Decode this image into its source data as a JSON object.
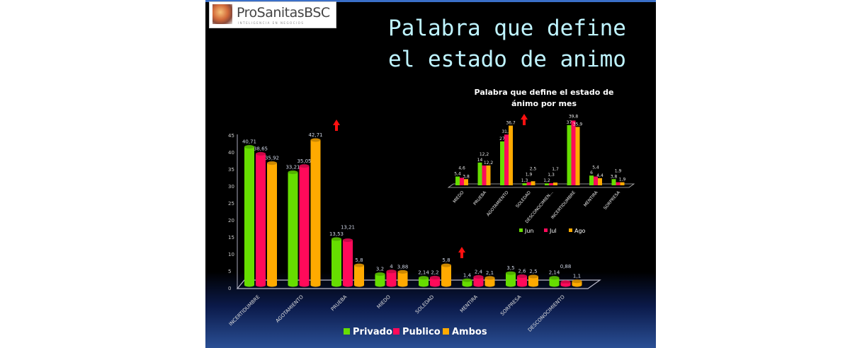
{
  "logo": {
    "name": "ProSanitasBSC",
    "tagline": "INTELIGENCIA EN NEGOCIOS"
  },
  "title": "Palabra que define el estado de animo",
  "colors": {
    "green": "#66dd00",
    "pink": "#ff0a5a",
    "orange": "#ffaa00",
    "arrow": "#ff1010"
  },
  "chart_data": [
    {
      "type": "bar",
      "title": "",
      "categories": [
        "INCERTIDUMBRE",
        "AGOTAMIENTO",
        "PRUEBA",
        "MIEDO",
        "SOLEDAD",
        "MENTIRA",
        "SORPRESA",
        "DESCONOCIMIENTO"
      ],
      "series": [
        {
          "name": "Privado",
          "values": [
            40.71,
            33.21,
            13.53,
            3.2,
            2.14,
            1.4,
            3.5,
            2.14
          ],
          "labels": [
            "40,71",
            "33,21",
            "13,53",
            "3,2",
            "2,14",
            "1,4",
            "3,5",
            "2,14"
          ]
        },
        {
          "name": "Publico",
          "values": [
            38.65,
            35.05,
            13.21,
            4,
            2.2,
            2.4,
            2.6,
            0.88
          ],
          "labels": [
            "38,65",
            "35,05",
            "13,21",
            "4",
            "2,2",
            "2,4",
            "2,6",
            "0,88"
          ]
        },
        {
          "name": "Ambos",
          "values": [
            35.92,
            42.71,
            5.8,
            3.88,
            5.8,
            2.1,
            2.5,
            1.1
          ],
          "labels": [
            "35,92",
            "42,71",
            "5,8",
            "3,88",
            "5,8",
            "2,1",
            "2,5",
            "1,1"
          ]
        }
      ],
      "ylim": [
        0,
        45
      ],
      "yticks": [
        "0",
        "5",
        "10",
        "15",
        "20",
        "25",
        "30",
        "35",
        "40",
        "45"
      ],
      "legend": "bottom"
    },
    {
      "type": "bar",
      "title": "Palabra que define el estado de ánimo por mes",
      "categories": [
        "MIEDO",
        "PRUEBA",
        "AGOTAMIENTO",
        "SOLEDAD",
        "DESCONOCIMIEN...",
        "INCERTIDUMBRE",
        "MENTIRA",
        "SORPRESA"
      ],
      "series": [
        {
          "name": "Jun",
          "values": [
            5.4,
            14,
            27,
            1.3,
            1.2,
            37,
            6,
            3.8
          ],
          "labels": [
            "5,4",
            "14",
            "27",
            "1,3",
            "1,2",
            "37",
            "6",
            "3,8"
          ]
        },
        {
          "name": "Jul",
          "values": [
            4.6,
            12.2,
            31.2,
            1.9,
            1.3,
            39.8,
            5.4,
            1.9
          ],
          "labels": [
            "4,6",
            "12,2",
            "31,2",
            "1,9",
            "1,3",
            "39,8",
            "5,4",
            "1,9"
          ]
        },
        {
          "name": "Ago",
          "values": [
            3.8,
            12.2,
            36.7,
            2.5,
            1.7,
            35.9,
            4.4,
            1.9
          ],
          "labels": [
            "3,8",
            "12,2",
            "36,7",
            "2,5",
            "1,7",
            "35,9",
            "4,4",
            "1,9"
          ]
        }
      ],
      "ylim": [
        0,
        42
      ],
      "legend": "bottom"
    }
  ]
}
